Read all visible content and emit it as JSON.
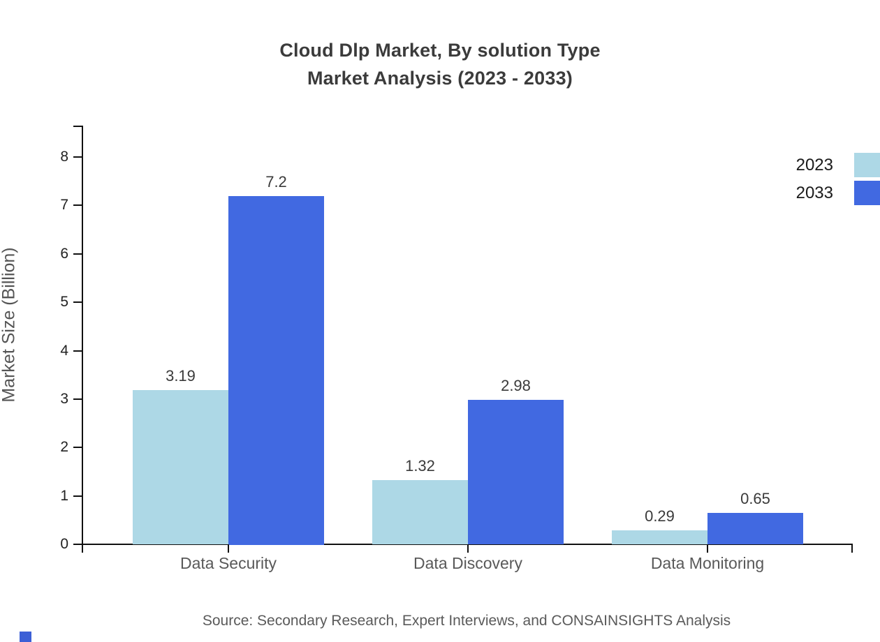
{
  "title": {
    "line1": "Cloud Dlp Market, By solution Type",
    "line2": "Market Analysis (2023 - 2033)"
  },
  "y_axis": {
    "label": "Market Size (Billion)",
    "ticks": [
      0,
      1,
      2,
      3,
      4,
      5,
      6,
      7,
      8
    ]
  },
  "legend": [
    {
      "label": "2023",
      "color": "#ADD8E6"
    },
    {
      "label": "2033",
      "color": "#4169E1"
    }
  ],
  "source": "Source: Secondary Research, Expert Interviews, and CONSAINSIGHTS Analysis",
  "branding": {
    "logo_color": "#3c5fd6"
  },
  "chart_data": {
    "type": "bar",
    "categories": [
      "Data Security",
      "Data Discovery",
      "Data Monitoring"
    ],
    "series": [
      {
        "name": "2023",
        "color": "#ADD8E6",
        "values": [
          3.19,
          1.32,
          0.29
        ]
      },
      {
        "name": "2033",
        "color": "#4169E1",
        "values": [
          7.2,
          2.98,
          0.65
        ]
      }
    ],
    "title": "Cloud Dlp Market, By solution Type Market Analysis (2023 - 2033)",
    "xlabel": "",
    "ylabel": "Market Size (Billion)",
    "ylim": [
      0,
      8
    ],
    "grid": false,
    "bar_value_labels": true,
    "legend_position": "top-right"
  }
}
